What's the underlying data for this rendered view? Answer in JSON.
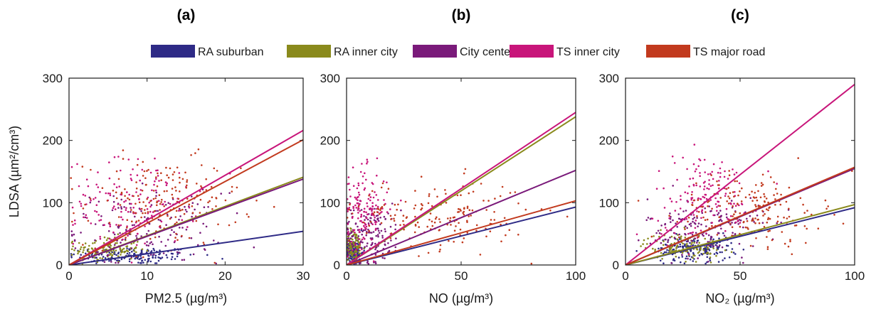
{
  "chart_data": [
    {
      "type": "scatter",
      "panel": "(a)",
      "xlabel": "PM2.5 (µg/m³)",
      "ylabel": "LDSA (µm²/cm³)",
      "xlim": [
        0,
        30
      ],
      "ylim": [
        0,
        300
      ],
      "xticks": [
        "0",
        "10",
        "20",
        "30"
      ],
      "yticks": [
        "0",
        "100",
        "200",
        "300"
      ],
      "grid": false,
      "series": [
        {
          "name": "RA suburban",
          "fit_slope": 1.8,
          "cloud_center": [
            8,
            15
          ],
          "cloud_spread": [
            6,
            10
          ],
          "points": 160
        },
        {
          "name": "RA inner city",
          "fit_slope": 4.7,
          "cloud_center": [
            5,
            25
          ],
          "cloud_spread": [
            3,
            15
          ],
          "points": 140
        },
        {
          "name": "City center",
          "fit_slope": 4.6,
          "cloud_center": [
            10,
            60
          ],
          "cloud_spread": [
            7,
            40
          ],
          "points": 160
        },
        {
          "name": "TS inner city",
          "fit_slope": 7.2,
          "cloud_center": [
            8,
            100
          ],
          "cloud_spread": [
            6,
            50
          ],
          "points": 150
        },
        {
          "name": "TS major road",
          "fit_slope": 6.7,
          "cloud_center": [
            12,
            100
          ],
          "cloud_spread": [
            7,
            50
          ],
          "points": 190
        }
      ]
    },
    {
      "type": "scatter",
      "panel": "(b)",
      "xlabel": "NO (µg/m³)",
      "ylabel": "",
      "xlim": [
        0,
        100
      ],
      "ylim": [
        0,
        300
      ],
      "xticks": [
        "0",
        "50",
        "100"
      ],
      "yticks": [
        "0",
        "100",
        "200",
        "300"
      ],
      "grid": false,
      "series": [
        {
          "name": "RA suburban",
          "fit_slope": 0.93,
          "cloud_center": [
            3,
            20
          ],
          "cloud_spread": [
            3,
            15
          ],
          "points": 150
        },
        {
          "name": "RA inner city",
          "fit_slope": 2.38,
          "cloud_center": [
            3,
            30
          ],
          "cloud_spread": [
            3,
            20
          ],
          "points": 120
        },
        {
          "name": "City center",
          "fit_slope": 1.52,
          "cloud_center": [
            10,
            50
          ],
          "cloud_spread": [
            10,
            35
          ],
          "points": 160
        },
        {
          "name": "TS inner city",
          "fit_slope": 2.45,
          "cloud_center": [
            8,
            90
          ],
          "cloud_spread": [
            7,
            45
          ],
          "points": 150
        },
        {
          "name": "TS major road",
          "fit_slope": 1.03,
          "cloud_center": [
            40,
            80
          ],
          "cloud_spread": [
            28,
            40
          ],
          "points": 180
        }
      ]
    },
    {
      "type": "scatter",
      "panel": "(c)",
      "xlabel": "NO₂ (µg/m³)",
      "ylabel": "",
      "xlim": [
        0,
        100
      ],
      "ylim": [
        0,
        300
      ],
      "xticks": [
        "0",
        "50",
        "100"
      ],
      "yticks": [
        "0",
        "100",
        "200",
        "300"
      ],
      "grid": false,
      "series": [
        {
          "name": "RA suburban",
          "fit_slope": 0.92,
          "cloud_center": [
            30,
            25
          ],
          "cloud_spread": [
            12,
            15
          ],
          "points": 160
        },
        {
          "name": "RA inner city",
          "fit_slope": 0.97,
          "cloud_center": [
            25,
            30
          ],
          "cloud_spread": [
            12,
            15
          ],
          "points": 120
        },
        {
          "name": "City center",
          "fit_slope": 1.55,
          "cloud_center": [
            35,
            60
          ],
          "cloud_spread": [
            18,
            35
          ],
          "points": 160
        },
        {
          "name": "TS inner city",
          "fit_slope": 2.9,
          "cloud_center": [
            35,
            110
          ],
          "cloud_spread": [
            16,
            50
          ],
          "points": 150
        },
        {
          "name": "TS major road",
          "fit_slope": 1.57,
          "cloud_center": [
            55,
            90
          ],
          "cloud_spread": [
            22,
            40
          ],
          "points": 190
        }
      ]
    }
  ],
  "legend": {
    "placement": "top-center",
    "items": [
      {
        "label": "RA suburban",
        "color": "#2e2a86"
      },
      {
        "label": "RA inner city",
        "color": "#8a8a1c"
      },
      {
        "label": "City center",
        "color": "#7a1a7a"
      },
      {
        "label": "TS inner city",
        "color": "#c8157a"
      },
      {
        "label": "TS major road",
        "color": "#c23a1e"
      }
    ]
  }
}
